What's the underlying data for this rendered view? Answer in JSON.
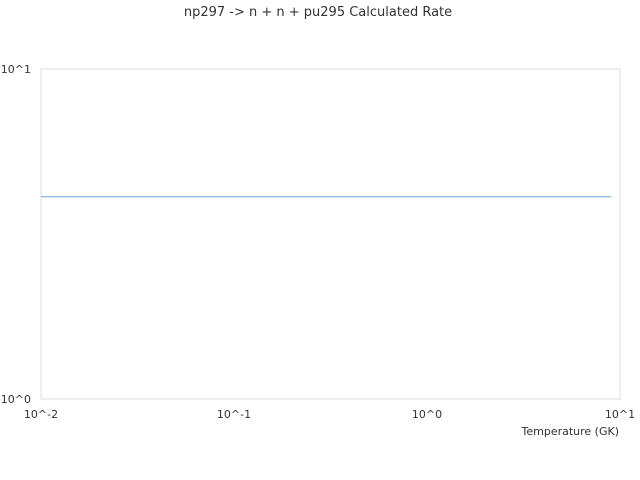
{
  "chart_data": {
    "type": "line",
    "title": "np297 -> n + n + pu295 Calculated Rate",
    "xlabel": "Temperature (GK)",
    "ylabel": "",
    "xscale": "log",
    "yscale": "log",
    "xlim": [
      0.01,
      10
    ],
    "ylim": [
      1,
      10
    ],
    "xticks": [
      "10^-2",
      "10^-1",
      "10^0",
      "10^1"
    ],
    "yticks": [
      "10^0",
      "10^1"
    ],
    "grid": false,
    "series": [
      {
        "color": "#6aa5dc",
        "x": [
          0.01,
          9.0
        ],
        "y": [
          4.1,
          4.1
        ]
      }
    ]
  }
}
